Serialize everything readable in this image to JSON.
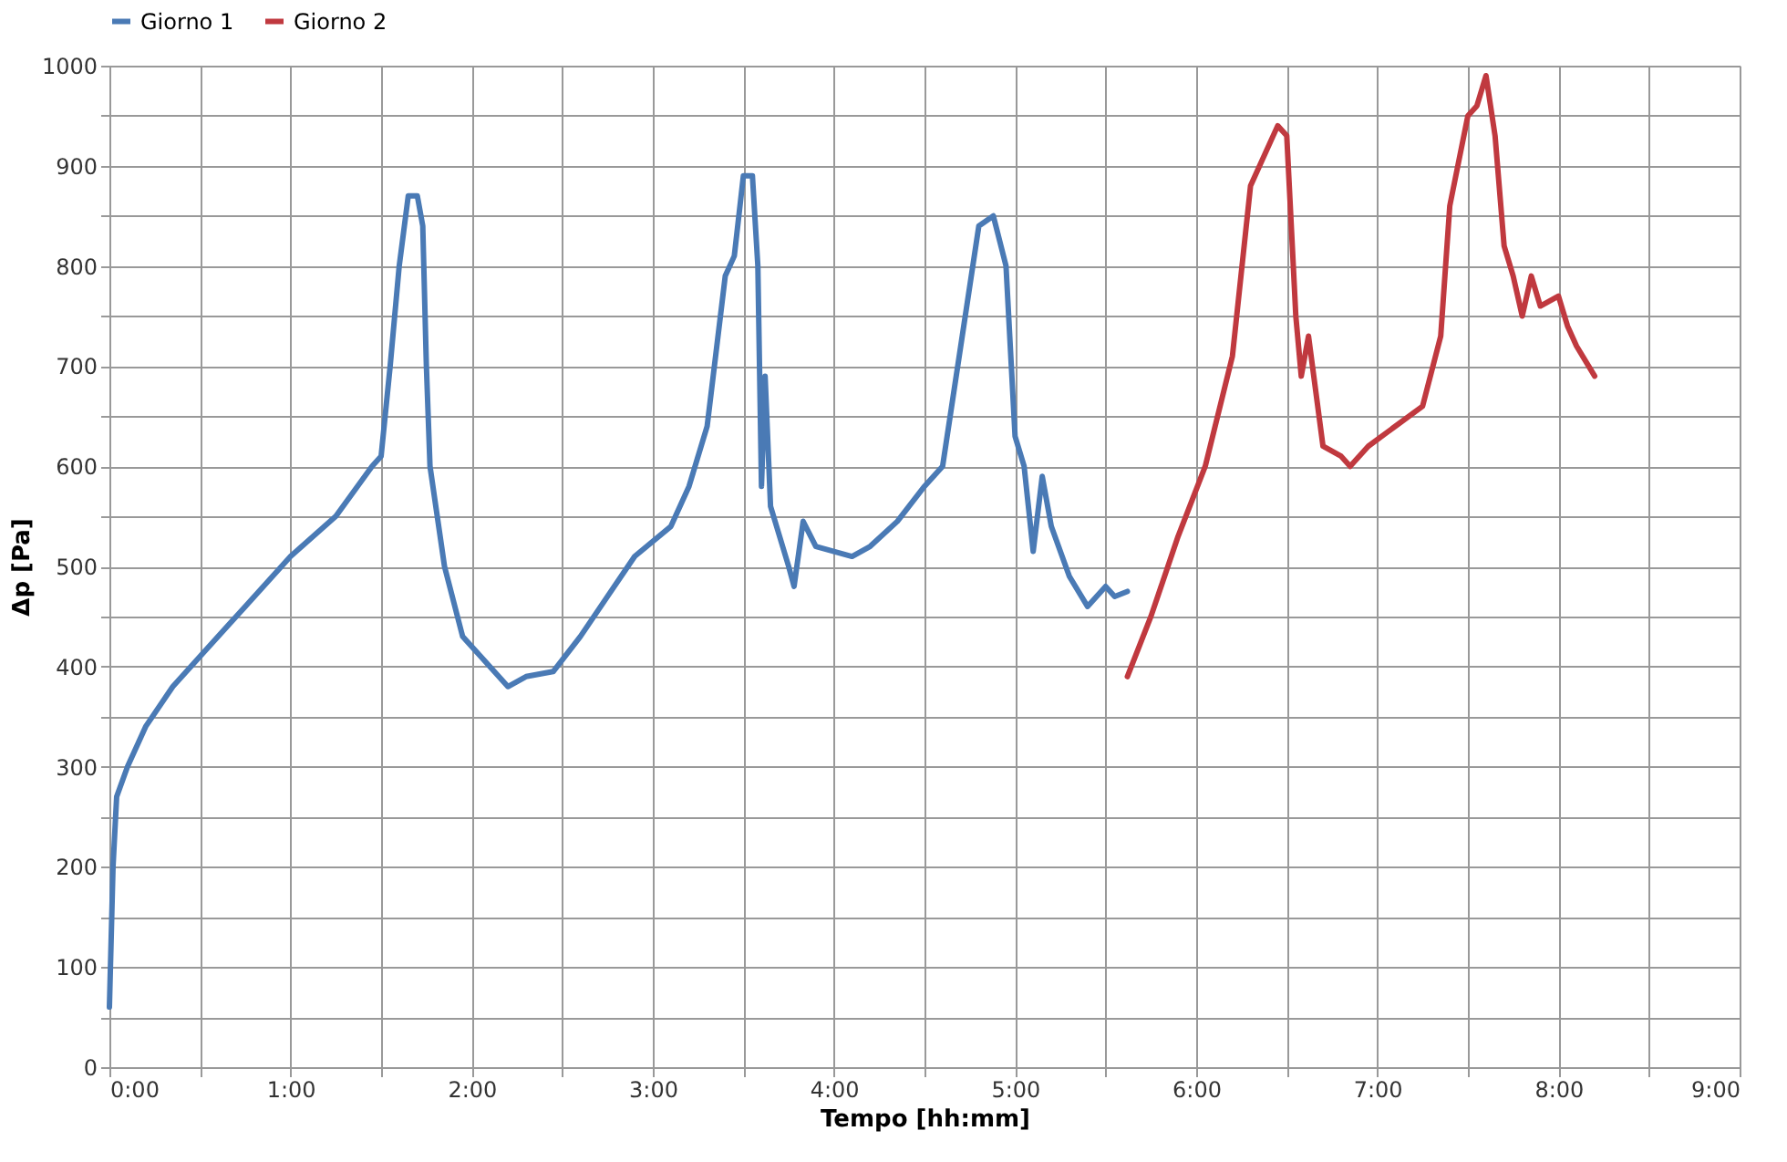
{
  "chart_data": {
    "type": "line",
    "xlabel": "Tempo [hh:mm]",
    "ylabel": "Δp [Pa]",
    "xlim": [
      0,
      9
    ],
    "ylim": [
      0,
      1000
    ],
    "xticks": [
      {
        "value": 0,
        "label": "0:00"
      },
      {
        "value": 0.5,
        "label": null
      },
      {
        "value": 1,
        "label": "1:00"
      },
      {
        "value": 1.5,
        "label": null
      },
      {
        "value": 2,
        "label": "2:00"
      },
      {
        "value": 2.5,
        "label": null
      },
      {
        "value": 3,
        "label": "3:00"
      },
      {
        "value": 3.5,
        "label": null
      },
      {
        "value": 4,
        "label": "4:00"
      },
      {
        "value": 4.5,
        "label": null
      },
      {
        "value": 5,
        "label": "5:00"
      },
      {
        "value": 5.5,
        "label": null
      },
      {
        "value": 6,
        "label": "6:00"
      },
      {
        "value": 6.5,
        "label": null
      },
      {
        "value": 7,
        "label": "7:00"
      },
      {
        "value": 7.5,
        "label": null
      },
      {
        "value": 8,
        "label": "8:00"
      },
      {
        "value": 8.5,
        "label": null
      },
      {
        "value": 9,
        "label": "9:00"
      }
    ],
    "yticks": [
      0,
      {
        "value": 50,
        "label": null
      },
      100,
      {
        "value": 150,
        "label": null
      },
      200,
      {
        "value": 250,
        "label": null
      },
      300,
      {
        "value": 350,
        "label": null
      },
      400,
      {
        "value": 450,
        "label": null
      },
      500,
      {
        "value": 550,
        "label": null
      },
      600,
      {
        "value": 650,
        "label": null
      },
      700,
      {
        "value": 750,
        "label": null
      },
      800,
      {
        "value": 850,
        "label": null
      },
      900,
      {
        "value": 950,
        "label": null
      },
      1000
    ],
    "grid": true,
    "legend": "top",
    "line_style": "solid",
    "marker": "none",
    "series": [
      {
        "name": "Giorno 1",
        "color": "#4a7ab5",
        "x": [
          0,
          0.02,
          0.04,
          0.1,
          0.2,
          0.35,
          0.5,
          0.75,
          1.0,
          1.25,
          1.45,
          1.5,
          1.55,
          1.6,
          1.65,
          1.7,
          1.73,
          1.75,
          1.77,
          1.85,
          1.95,
          2.05,
          2.2,
          2.3,
          2.45,
          2.6,
          2.75,
          2.9,
          3.1,
          3.2,
          3.3,
          3.4,
          3.45,
          3.5,
          3.55,
          3.58,
          3.6,
          3.62,
          3.65,
          3.75,
          3.78,
          3.83,
          3.9,
          4.0,
          4.1,
          4.2,
          4.35,
          4.5,
          4.6,
          4.7,
          4.8,
          4.88,
          4.95,
          5.0,
          5.05,
          5.1,
          5.15,
          5.2,
          5.3,
          5.4,
          5.5,
          5.55,
          5.62
        ],
        "values": [
          60,
          200,
          270,
          300,
          340,
          380,
          410,
          460,
          510,
          550,
          600,
          610,
          700,
          800,
          870,
          870,
          840,
          700,
          600,
          500,
          430,
          410,
          380,
          390,
          395,
          430,
          470,
          510,
          540,
          580,
          640,
          790,
          810,
          890,
          890,
          800,
          580,
          690,
          560,
          500,
          480,
          545,
          520,
          515,
          510,
          520,
          545,
          580,
          600,
          720,
          840,
          850,
          800,
          630,
          600,
          515,
          590,
          540,
          490,
          460,
          480,
          470,
          475
        ]
      },
      {
        "name": "Giorno 2",
        "color": "#c0393f",
        "x": [
          5.62,
          5.75,
          5.9,
          6.05,
          6.2,
          6.3,
          6.45,
          6.5,
          6.55,
          6.58,
          6.62,
          6.7,
          6.8,
          6.85,
          6.95,
          7.1,
          7.25,
          7.35,
          7.4,
          7.5,
          7.55,
          7.6,
          7.65,
          7.7,
          7.75,
          7.8,
          7.85,
          7.9,
          8.0,
          8.05,
          8.1,
          8.2
        ],
        "values": [
          390,
          450,
          530,
          600,
          710,
          880,
          940,
          930,
          750,
          690,
          730,
          620,
          610,
          600,
          620,
          640,
          660,
          730,
          860,
          950,
          960,
          990,
          930,
          820,
          790,
          750,
          790,
          760,
          770,
          740,
          720,
          690
        ]
      }
    ]
  }
}
